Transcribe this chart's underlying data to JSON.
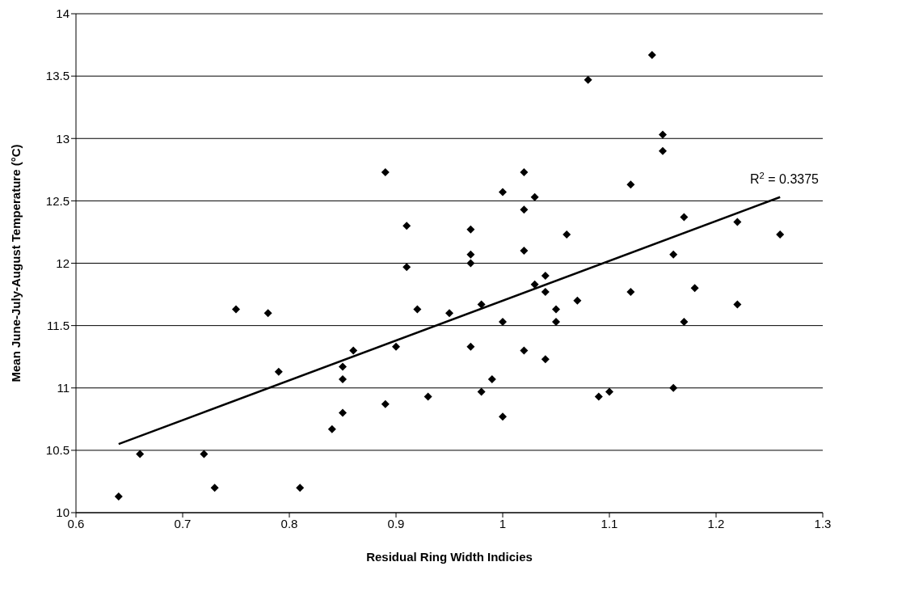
{
  "chart_data": {
    "type": "scatter",
    "xlabel": "Residual Ring Width Indicies",
    "ylabel": "Mean June-July-August Temperature (°C)",
    "xlim": [
      0.6,
      1.3
    ],
    "xticks": [
      0.6,
      0.7,
      0.8,
      0.9,
      1,
      1.1,
      1.2,
      1.3
    ],
    "ylim": [
      10,
      14
    ],
    "yticks": [
      10,
      10.5,
      11,
      11.5,
      12,
      12.5,
      13,
      13.5,
      14
    ],
    "grid": "y",
    "marker": "diamond",
    "annotations": [
      "R$^{2}$ = 0.3375"
    ],
    "series": [
      {
        "color": "#000000",
        "x": [
          0.64,
          0.66,
          0.72,
          0.73,
          0.75,
          0.78,
          0.79,
          0.81,
          0.84,
          0.85,
          0.85,
          0.85,
          0.86,
          0.89,
          0.89,
          0.9,
          0.91,
          0.91,
          0.92,
          0.93,
          0.95,
          0.97,
          0.97,
          0.97,
          0.97,
          0.98,
          0.98,
          0.99,
          1.0,
          1.0,
          1.0,
          1.02,
          1.02,
          1.02,
          1.02,
          1.03,
          1.03,
          1.04,
          1.04,
          1.04,
          1.05,
          1.05,
          1.06,
          1.07,
          1.08,
          1.09,
          1.1,
          1.12,
          1.12,
          1.14,
          1.15,
          1.15,
          1.16,
          1.16,
          1.17,
          1.17,
          1.18,
          1.22,
          1.22,
          1.26
        ],
        "values": [
          10.13,
          10.47,
          10.47,
          10.2,
          11.63,
          11.6,
          11.13,
          10.2,
          10.67,
          11.17,
          11.07,
          10.8,
          11.3,
          12.73,
          10.87,
          11.33,
          12.3,
          11.97,
          11.63,
          10.93,
          11.6,
          12.27,
          12.07,
          12.0,
          11.33,
          11.67,
          10.97,
          11.07,
          12.57,
          11.53,
          10.77,
          12.73,
          12.43,
          12.1,
          11.3,
          12.53,
          11.83,
          11.9,
          11.77,
          11.23,
          11.63,
          11.53,
          12.23,
          11.7,
          13.47,
          10.93,
          10.97,
          12.63,
          11.77,
          13.67,
          13.03,
          12.9,
          12.07,
          11.0,
          12.37,
          11.53,
          11.8,
          12.33,
          11.67,
          12.23
        ]
      },
      {
        "type": "line",
        "color": "#000000",
        "marker": "none",
        "x": [
          0.64,
          1.26
        ],
        "values": [
          10.55,
          12.53
        ]
      }
    ]
  }
}
